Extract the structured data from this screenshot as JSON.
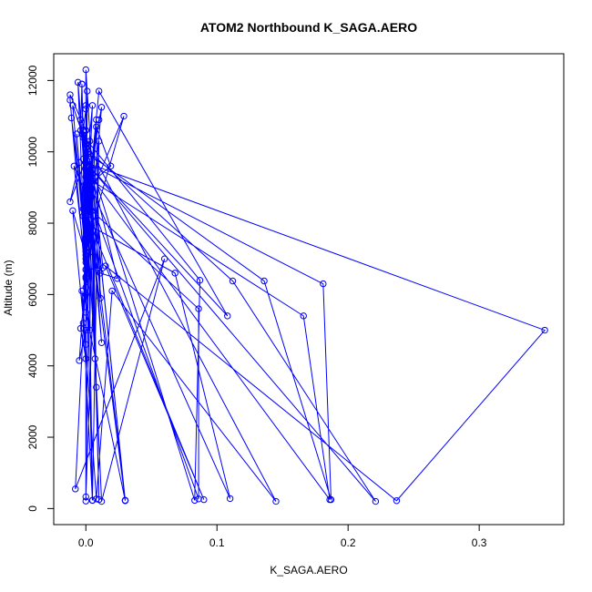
{
  "chart_data": {
    "type": "line",
    "title": "ATOM2 Northbound K_SAGA.AERO",
    "xlabel": "K_SAGA.AERO",
    "ylabel": "Altitude (m)",
    "xlim": [
      -0.0245,
      0.3645
    ],
    "ylim": [
      -450,
      12750
    ],
    "x_ticks": [
      0.0,
      0.1,
      0.2,
      0.3
    ],
    "x_tick_labels": [
      "0.0",
      "0.1",
      "0.2",
      "0.3"
    ],
    "y_ticks": [
      0,
      2000,
      4000,
      6000,
      8000,
      10000,
      12000
    ],
    "y_tick_labels": [
      "0",
      "2000",
      "4000",
      "6000",
      "8000",
      "10000",
      "12000"
    ],
    "grid": false,
    "legend": "none",
    "colors": {
      "series": "#0000ff",
      "axes": "#000000",
      "background": "#ffffff"
    },
    "series": [
      {
        "marker": "open-circle",
        "line": true,
        "points": [
          {
            "x": 0.0,
            "y": 210
          },
          {
            "x": 0.0,
            "y": 8200
          },
          {
            "x": 0.005,
            "y": 230
          },
          {
            "x": 0.01,
            "y": 10300
          },
          {
            "x": 0.0,
            "y": 330
          },
          {
            "x": 0.003,
            "y": 9800
          },
          {
            "x": 0.01,
            "y": 250
          },
          {
            "x": 0.004,
            "y": 9500
          },
          {
            "x": 0.03,
            "y": 220
          },
          {
            "x": 0.005,
            "y": 9200
          },
          {
            "x": 0.03,
            "y": 230
          },
          {
            "x": 0.002,
            "y": 8300
          },
          {
            "x": 0.005,
            "y": 230
          },
          {
            "x": -0.003,
            "y": 6100
          },
          {
            "x": 0.008,
            "y": 270
          },
          {
            "x": 0.02,
            "y": 6100
          },
          {
            "x": 0.145,
            "y": 200
          },
          {
            "x": -0.003,
            "y": 10500
          },
          {
            "x": 0.087,
            "y": 6400
          },
          {
            "x": 0.083,
            "y": 230
          },
          {
            "x": 0.0,
            "y": 10100
          },
          {
            "x": 0.112,
            "y": 6380
          },
          {
            "x": 0.221,
            "y": 200
          },
          {
            "x": 0.0,
            "y": 9700
          },
          {
            "x": 0.35,
            "y": 5000
          },
          {
            "x": 0.237,
            "y": 220
          },
          {
            "x": 0.015,
            "y": 6800
          },
          {
            "x": 0.09,
            "y": 250
          },
          {
            "x": 0.002,
            "y": 8100
          },
          {
            "x": -0.008,
            "y": 550
          },
          {
            "x": 0.06,
            "y": 7000
          },
          {
            "x": 0.012,
            "y": 200
          },
          {
            "x": 0.0,
            "y": 10000
          },
          {
            "x": 0.136,
            "y": 6380
          },
          {
            "x": 0.187,
            "y": 250
          },
          {
            "x": 0.181,
            "y": 6300
          },
          {
            "x": 0.0,
            "y": 9700
          },
          {
            "x": 0.108,
            "y": 5400
          },
          {
            "x": 0.01,
            "y": 11700
          },
          {
            "x": 0.0,
            "y": 8000
          },
          {
            "x": 0.068,
            "y": 6600
          },
          {
            "x": 0.11,
            "y": 280
          },
          {
            "x": 0.0,
            "y": 9300
          },
          {
            "x": 0.166,
            "y": 5400
          },
          {
            "x": 0.186,
            "y": 250
          },
          {
            "x": 0.0,
            "y": 9500
          },
          {
            "x": 0.03,
            "y": 230
          },
          {
            "x": 0.0,
            "y": 5500
          },
          {
            "x": -0.003,
            "y": 11900
          },
          {
            "x": 0.0,
            "y": 7300
          },
          {
            "x": 0.029,
            "y": 11000
          },
          {
            "x": 0.0,
            "y": 8500
          },
          {
            "x": 0.086,
            "y": 5600
          },
          {
            "x": 0.086,
            "y": 270
          },
          {
            "x": 0.0,
            "y": 9000
          },
          {
            "x": 0.019,
            "y": 9600
          },
          {
            "x": 0.008,
            "y": 10700
          },
          {
            "x": 0.011,
            "y": 5900
          },
          {
            "x": 0.0,
            "y": 12300
          },
          {
            "x": 0.0,
            "y": 11200
          },
          {
            "x": -0.002,
            "y": 10600
          },
          {
            "x": 0.012,
            "y": 4650
          },
          {
            "x": 0.0,
            "y": 10600
          },
          {
            "x": 0.007,
            "y": 4200
          },
          {
            "x": -0.002,
            "y": 9800
          },
          {
            "x": 0.0,
            "y": 6700
          },
          {
            "x": 0.013,
            "y": 6750
          },
          {
            "x": 0.003,
            "y": 10300
          },
          {
            "x": 0.008,
            "y": 3400
          },
          {
            "x": 0.005,
            "y": 9400
          },
          {
            "x": -0.005,
            "y": 4150
          },
          {
            "x": 0.0,
            "y": 5000
          },
          {
            "x": 0.008,
            "y": 10900
          },
          {
            "x": 0.0,
            "y": 7200
          },
          {
            "x": -0.002,
            "y": 10400
          },
          {
            "x": 0.011,
            "y": 6600
          },
          {
            "x": 0.024,
            "y": 6450
          },
          {
            "x": 0.003,
            "y": 9600
          },
          {
            "x": -0.002,
            "y": 5200
          },
          {
            "x": 0.0,
            "y": 8700
          },
          {
            "x": 0.0,
            "y": 6200
          },
          {
            "x": 0.005,
            "y": 7800
          },
          {
            "x": 0.0,
            "y": 6450
          },
          {
            "x": -0.005,
            "y": 9700
          },
          {
            "x": -0.012,
            "y": 8600
          },
          {
            "x": 0.002,
            "y": 10000
          },
          {
            "x": -0.01,
            "y": 11300
          },
          {
            "x": 0.0,
            "y": 6900
          },
          {
            "x": 0.005,
            "y": 11300
          },
          {
            "x": -0.002,
            "y": 8400
          },
          {
            "x": -0.011,
            "y": 10950
          },
          {
            "x": 0.0,
            "y": 7600
          },
          {
            "x": 0.0,
            "y": 11300
          },
          {
            "x": 0.0,
            "y": 9100
          },
          {
            "x": -0.006,
            "y": 11950
          },
          {
            "x": 0.0,
            "y": 6500
          },
          {
            "x": 0.012,
            "y": 11250
          },
          {
            "x": 0.0,
            "y": 8900
          },
          {
            "x": 0.005,
            "y": 7200
          },
          {
            "x": -0.004,
            "y": 10900
          },
          {
            "x": 0.0,
            "y": 8800
          },
          {
            "x": -0.009,
            "y": 9600
          },
          {
            "x": 0.0,
            "y": 6700
          },
          {
            "x": -0.002,
            "y": 8200
          },
          {
            "x": 0.01,
            "y": 10900
          },
          {
            "x": 0.004,
            "y": 9400
          },
          {
            "x": 0.0,
            "y": 8400
          },
          {
            "x": -0.001,
            "y": 10550
          },
          {
            "x": 0.002,
            "y": 9200
          },
          {
            "x": -0.004,
            "y": 10600
          },
          {
            "x": -0.003,
            "y": 11900
          },
          {
            "x": 0.0,
            "y": 7400
          },
          {
            "x": -0.007,
            "y": 10500
          },
          {
            "x": 0.0,
            "y": 7100
          },
          {
            "x": -0.01,
            "y": 8350
          },
          {
            "x": 0.0,
            "y": 4600
          },
          {
            "x": 0.001,
            "y": 11700
          },
          {
            "x": 0.0,
            "y": 10200
          },
          {
            "x": 0.0,
            "y": 7500
          },
          {
            "x": 0.0,
            "y": 8600
          },
          {
            "x": 0.0,
            "y": 9900
          },
          {
            "x": 0.0,
            "y": 7000
          },
          {
            "x": 0.0,
            "y": 9000
          },
          {
            "x": 0.0,
            "y": 6000
          },
          {
            "x": -0.004,
            "y": 5050
          },
          {
            "x": 0.0,
            "y": 4200
          },
          {
            "x": 0.0,
            "y": 10600
          },
          {
            "x": -0.012,
            "y": 11600
          },
          {
            "x": -0.012,
            "y": 11450
          },
          {
            "x": 0.003,
            "y": 5000
          },
          {
            "x": 0.005,
            "y": 9500
          }
        ]
      }
    ]
  }
}
